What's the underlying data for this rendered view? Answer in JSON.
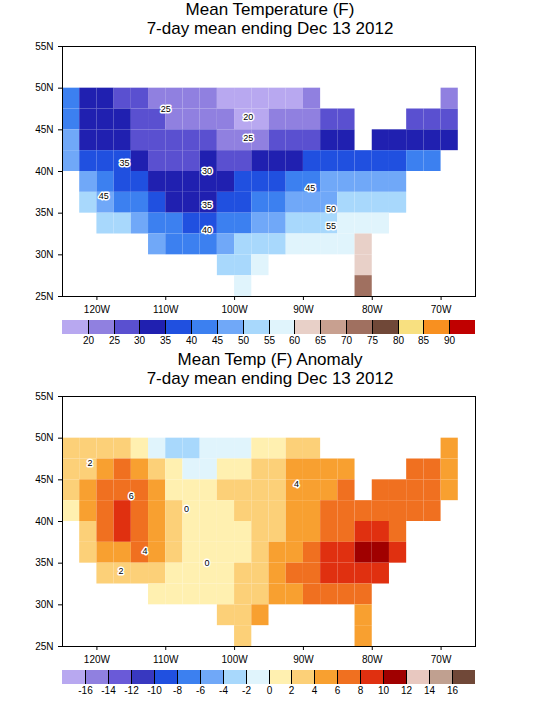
{
  "chart_data": [
    {
      "type": "heatmap",
      "title": "Mean Temperature (F)",
      "subtitle": "7-day mean ending Dec 13 2012",
      "xlim": [
        -125,
        -65
      ],
      "xticks": [
        {
          "value": -120,
          "label": "120W"
        },
        {
          "value": -110,
          "label": "110W"
        },
        {
          "value": -100,
          "label": "100W"
        },
        {
          "value": -90,
          "label": "90W"
        },
        {
          "value": -80,
          "label": "80W"
        },
        {
          "value": -70,
          "label": "70W"
        }
      ],
      "ylim": [
        25,
        55
      ],
      "yticks": [
        {
          "value": 25,
          "label": "25N"
        },
        {
          "value": 30,
          "label": "30N"
        },
        {
          "value": 35,
          "label": "35N"
        },
        {
          "value": 40,
          "label": "40N"
        },
        {
          "value": 45,
          "label": "45N"
        },
        {
          "value": 50,
          "label": "50N"
        },
        {
          "value": 55,
          "label": "55N"
        }
      ],
      "lon": [
        -123.75,
        -121.25,
        -118.75,
        -116.25,
        -113.75,
        -111.25,
        -108.75,
        -106.25,
        -103.75,
        -101.25,
        -98.75,
        -96.25,
        -93.75,
        -91.25,
        -88.75,
        -86.25,
        -83.75,
        -81.25,
        -78.75,
        -76.25,
        -73.75,
        -71.25,
        -68.75
      ],
      "lat": [
        48.75,
        46.25,
        43.75,
        41.25,
        38.75,
        36.25,
        33.75,
        31.25,
        28.75,
        26.25
      ],
      "values": [
        [
          40,
          33,
          31,
          28,
          26,
          24,
          22,
          21,
          20,
          18,
          17,
          16,
          17,
          19,
          21,
          null,
          null,
          null,
          null,
          null,
          null,
          null,
          24
        ],
        [
          42,
          34,
          31,
          30,
          27,
          25,
          24,
          24,
          22,
          20,
          18,
          18,
          20,
          22,
          24,
          27,
          29,
          null,
          null,
          null,
          27,
          28,
          27
        ],
        [
          45,
          34,
          31,
          30,
          27,
          26,
          26,
          27,
          26,
          24,
          23,
          23,
          25,
          27,
          29,
          31,
          33,
          null,
          34,
          33,
          31,
          31,
          31
        ],
        [
          48,
          39,
          36,
          35,
          31,
          29,
          27,
          28,
          30,
          29,
          29,
          30,
          31,
          33,
          35,
          36,
          37,
          38,
          38,
          39,
          40,
          41,
          null
        ],
        [
          null,
          47,
          40,
          37,
          36,
          33,
          30,
          30,
          32,
          33,
          35,
          37,
          39,
          41,
          43,
          45,
          46,
          46,
          46,
          47,
          null,
          null,
          null
        ],
        [
          null,
          50,
          45,
          42,
          40,
          36,
          34,
          33,
          34,
          36,
          38,
          40,
          42,
          45,
          47,
          49,
          50,
          50,
          50,
          51,
          null,
          null,
          null
        ],
        [
          null,
          null,
          52,
          50,
          47,
          43,
          40,
          38,
          39,
          41,
          44,
          46,
          49,
          51,
          53,
          54,
          55,
          56,
          56,
          null,
          null,
          null,
          null
        ],
        [
          null,
          null,
          null,
          null,
          null,
          48,
          44,
          42,
          44,
          47,
          50,
          52,
          54,
          56,
          57,
          58,
          59,
          60,
          null,
          null,
          null,
          null,
          null
        ],
        [
          null,
          null,
          null,
          null,
          null,
          null,
          null,
          null,
          null,
          52,
          54,
          57,
          null,
          null,
          null,
          null,
          null,
          64,
          null,
          null,
          null,
          null,
          null
        ],
        [
          null,
          null,
          null,
          null,
          null,
          null,
          null,
          null,
          null,
          null,
          58,
          null,
          null,
          null,
          null,
          null,
          null,
          70,
          null,
          null,
          null,
          null,
          null
        ]
      ],
      "colorbar": {
        "ticks": [
          20,
          25,
          30,
          35,
          40,
          45,
          50,
          55,
          60,
          65,
          70,
          75,
          80,
          85,
          90
        ],
        "colors": [
          "#b8a8f0",
          "#9080e0",
          "#5a50d0",
          "#2020b0",
          "#2050e0",
          "#3c80f0",
          "#70a8f8",
          "#a8d8fc",
          "#e0f4fc",
          "#e8d0c8",
          "#c8a090",
          "#a07060",
          "#704838",
          "#f8e080",
          "#f89020",
          "#c00000"
        ]
      },
      "annotations": [
        {
          "text": 25,
          "lon": -110,
          "lat": 47.5
        },
        {
          "text": 20,
          "lon": -98,
          "lat": 46.5
        },
        {
          "text": 25,
          "lon": -98,
          "lat": 44
        },
        {
          "text": 35,
          "lon": -116,
          "lat": 41
        },
        {
          "text": 30,
          "lon": -104,
          "lat": 40
        },
        {
          "text": 45,
          "lon": -119,
          "lat": 37
        },
        {
          "text": 35,
          "lon": -104,
          "lat": 36
        },
        {
          "text": 40,
          "lon": -104,
          "lat": 33
        },
        {
          "text": 45,
          "lon": -89,
          "lat": 38
        },
        {
          "text": 50,
          "lon": -86,
          "lat": 35.5
        },
        {
          "text": 55,
          "lon": -86,
          "lat": 33.5
        }
      ]
    },
    {
      "type": "heatmap",
      "title": "Mean Temp (F) Anomaly",
      "subtitle": "7-day mean ending Dec 13 2012",
      "xlim": [
        -125,
        -65
      ],
      "xticks": [
        {
          "value": -120,
          "label": "120W"
        },
        {
          "value": -110,
          "label": "110W"
        },
        {
          "value": -100,
          "label": "100W"
        },
        {
          "value": -90,
          "label": "90W"
        },
        {
          "value": -80,
          "label": "80W"
        },
        {
          "value": -70,
          "label": "70W"
        }
      ],
      "ylim": [
        25,
        55
      ],
      "yticks": [
        {
          "value": 25,
          "label": "25N"
        },
        {
          "value": 30,
          "label": "30N"
        },
        {
          "value": 35,
          "label": "35N"
        },
        {
          "value": 40,
          "label": "40N"
        },
        {
          "value": 45,
          "label": "45N"
        },
        {
          "value": 50,
          "label": "50N"
        },
        {
          "value": 55,
          "label": "55N"
        }
      ],
      "lon": [
        -123.75,
        -121.25,
        -118.75,
        -116.25,
        -113.75,
        -111.25,
        -108.75,
        -106.25,
        -103.75,
        -101.25,
        -98.75,
        -96.25,
        -93.75,
        -91.25,
        -88.75,
        -86.25,
        -83.75,
        -81.25,
        -78.75,
        -76.25,
        -73.75,
        -71.25,
        -68.75
      ],
      "lat": [
        48.75,
        46.25,
        43.75,
        41.25,
        38.75,
        36.25,
        33.75,
        31.25,
        28.75,
        26.25
      ],
      "values": [
        [
          2,
          2,
          3,
          3,
          1,
          -1,
          -3,
          -3,
          -2,
          -2,
          -1,
          0,
          1,
          2,
          3,
          null,
          null,
          null,
          null,
          null,
          null,
          null,
          4
        ],
        [
          2,
          3,
          5,
          7,
          5,
          2,
          0,
          -1,
          -1,
          0,
          1,
          2,
          3,
          4,
          4,
          4,
          5,
          null,
          null,
          null,
          6,
          6,
          5
        ],
        [
          2,
          4,
          6,
          7,
          6,
          4,
          1,
          0,
          1,
          2,
          2,
          2,
          3,
          4,
          5,
          5,
          6,
          null,
          6,
          7,
          7,
          6,
          5
        ],
        [
          1,
          4,
          7,
          9,
          7,
          5,
          2,
          0,
          1,
          1,
          2,
          2,
          3,
          4,
          5,
          6,
          7,
          7,
          7,
          7,
          7,
          6,
          null
        ],
        [
          null,
          3,
          7,
          9,
          6,
          4,
          2,
          1,
          1,
          1,
          1,
          2,
          3,
          4,
          5,
          6,
          7,
          8,
          8,
          7,
          null,
          null,
          null
        ],
        [
          null,
          2,
          4,
          5,
          6,
          4,
          2,
          1,
          0,
          0,
          1,
          2,
          4,
          5,
          6,
          8,
          9,
          10,
          11,
          9,
          null,
          null,
          null
        ],
        [
          null,
          null,
          2,
          3,
          3,
          2,
          1,
          0,
          0,
          1,
          2,
          3,
          5,
          6,
          7,
          8,
          9,
          9,
          8,
          null,
          null,
          null,
          null
        ],
        [
          null,
          null,
          null,
          null,
          null,
          1,
          1,
          0,
          1,
          1,
          2,
          3,
          4,
          5,
          6,
          7,
          7,
          6,
          null,
          null,
          null,
          null,
          null
        ],
        [
          null,
          null,
          null,
          null,
          null,
          null,
          null,
          null,
          null,
          2,
          3,
          4,
          null,
          null,
          null,
          null,
          null,
          5,
          null,
          null,
          null,
          null,
          null
        ],
        [
          null,
          null,
          null,
          null,
          null,
          null,
          null,
          null,
          null,
          null,
          3,
          null,
          null,
          null,
          null,
          null,
          null,
          4,
          null,
          null,
          null,
          null,
          null
        ]
      ],
      "colorbar": {
        "ticks": [
          -16,
          -14,
          -12,
          -10,
          -8,
          -6,
          -4,
          -2,
          0,
          2,
          4,
          6,
          8,
          10,
          12,
          14,
          16
        ],
        "colors": [
          "#b8a8f0",
          "#9080e0",
          "#6a5ad8",
          "#3838c0",
          "#2050e0",
          "#3c80f0",
          "#70a8f8",
          "#a8d8fc",
          "#e0f4fc",
          "#fff0b0",
          "#fcd078",
          "#f8a030",
          "#f07020",
          "#e03010",
          "#a00000",
          "#e8c8c0",
          "#c0a090",
          "#704838"
        ]
      },
      "annotations": [
        {
          "text": 2,
          "lon": -121,
          "lat": 47
        },
        {
          "text": 6,
          "lon": -115,
          "lat": 43
        },
        {
          "text": 4,
          "lon": -113,
          "lat": 36.5
        },
        {
          "text": 2,
          "lon": -116.5,
          "lat": 34
        },
        {
          "text": 0,
          "lon": -107,
          "lat": 41.5
        },
        {
          "text": 4,
          "lon": -91,
          "lat": 44.5
        },
        {
          "text": 0,
          "lon": -104,
          "lat": 35
        }
      ]
    }
  ]
}
